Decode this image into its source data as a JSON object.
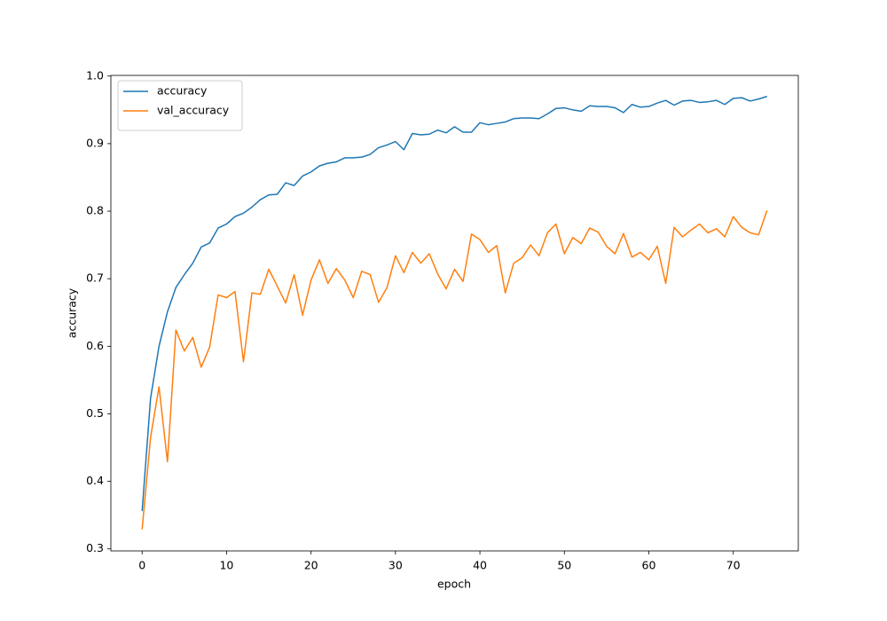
{
  "chart_data": {
    "type": "line",
    "xlabel": "epoch",
    "ylabel": "accuracy",
    "x": [
      0,
      1,
      2,
      3,
      4,
      5,
      6,
      7,
      8,
      9,
      10,
      11,
      12,
      13,
      14,
      15,
      16,
      17,
      18,
      19,
      20,
      21,
      22,
      23,
      24,
      25,
      26,
      27,
      28,
      29,
      30,
      31,
      32,
      33,
      34,
      35,
      36,
      37,
      38,
      39,
      40,
      41,
      42,
      43,
      44,
      45,
      46,
      47,
      48,
      49,
      50,
      51,
      52,
      53,
      54,
      55,
      56,
      57,
      58,
      59,
      60,
      61,
      62,
      63,
      64,
      65,
      66,
      67,
      68,
      69,
      70,
      71,
      72,
      73,
      74
    ],
    "series": [
      {
        "name": "accuracy",
        "color": "#1f77b4",
        "values": [
          0.356,
          0.523,
          0.6,
          0.651,
          0.687,
          0.706,
          0.723,
          0.747,
          0.753,
          0.775,
          0.781,
          0.792,
          0.797,
          0.806,
          0.817,
          0.824,
          0.825,
          0.842,
          0.838,
          0.852,
          0.858,
          0.867,
          0.871,
          0.873,
          0.879,
          0.879,
          0.88,
          0.884,
          0.894,
          0.898,
          0.903,
          0.891,
          0.915,
          0.913,
          0.914,
          0.92,
          0.916,
          0.925,
          0.917,
          0.917,
          0.931,
          0.928,
          0.93,
          0.932,
          0.937,
          0.938,
          0.938,
          0.937,
          0.944,
          0.952,
          0.953,
          0.95,
          0.948,
          0.956,
          0.955,
          0.955,
          0.953,
          0.946,
          0.958,
          0.954,
          0.955,
          0.96,
          0.964,
          0.957,
          0.963,
          0.964,
          0.961,
          0.962,
          0.964,
          0.958,
          0.967,
          0.968,
          0.963,
          0.966,
          0.97
        ]
      },
      {
        "name": "val_accuracy",
        "color": "#ff7f0e",
        "values": [
          0.329,
          0.465,
          0.54,
          0.429,
          0.624,
          0.593,
          0.613,
          0.569,
          0.599,
          0.676,
          0.672,
          0.681,
          0.577,
          0.679,
          0.677,
          0.714,
          0.689,
          0.664,
          0.706,
          0.646,
          0.698,
          0.728,
          0.693,
          0.715,
          0.698,
          0.672,
          0.711,
          0.706,
          0.665,
          0.687,
          0.734,
          0.709,
          0.739,
          0.723,
          0.737,
          0.707,
          0.685,
          0.714,
          0.696,
          0.766,
          0.758,
          0.739,
          0.749,
          0.679,
          0.723,
          0.731,
          0.75,
          0.734,
          0.768,
          0.781,
          0.737,
          0.761,
          0.752,
          0.775,
          0.769,
          0.748,
          0.737,
          0.767,
          0.732,
          0.739,
          0.728,
          0.748,
          0.693,
          0.776,
          0.762,
          0.772,
          0.781,
          0.768,
          0.774,
          0.762,
          0.792,
          0.776,
          0.768,
          0.765,
          0.801
        ]
      }
    ],
    "xlim": [
      -3.7,
      77.7
    ],
    "xticks": [
      0,
      10,
      20,
      30,
      40,
      50,
      60,
      70
    ],
    "ylim": [
      0.297,
      1.001
    ],
    "yticks": [
      0.3,
      0.4,
      0.5,
      0.6,
      0.7,
      0.8,
      0.9,
      {
        "value": 1,
        "label": "1.0"
      }
    ],
    "legend": "upper left"
  }
}
